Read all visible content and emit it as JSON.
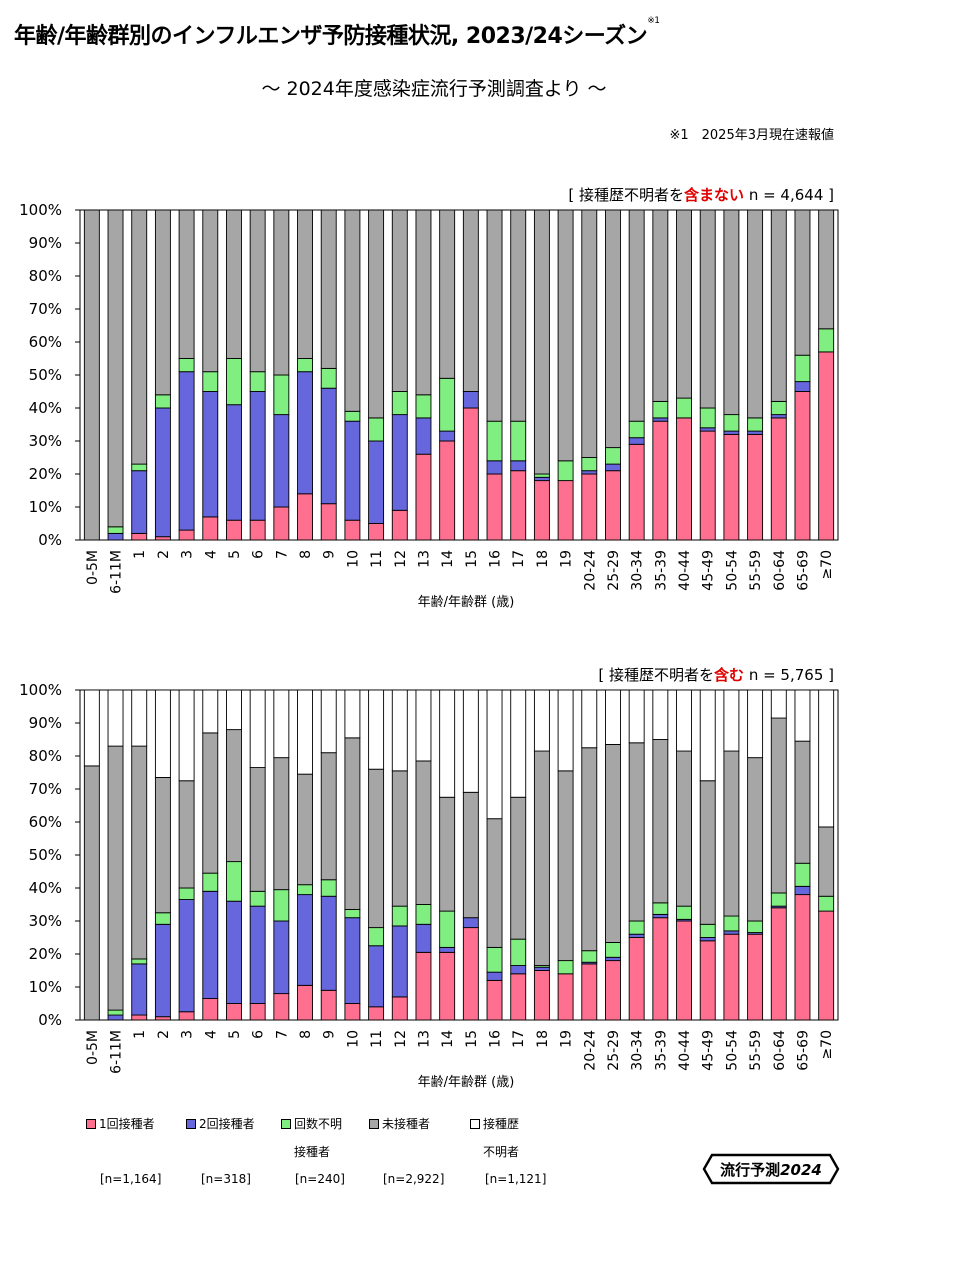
{
  "title": "年齢/年齢群別のインフルエンザ予防接種状況, 2023/24シーズン",
  "title_note_marker": "※1",
  "subtitle": "～ 2024年度感染症流行予測調査より ～",
  "footnote": "※1　2025年3月現在速報値",
  "colors": {
    "dose1": "#ff6f8f",
    "dose2": "#6666dd",
    "unknown_count": "#80ee80",
    "unvaccinated": "#a6a6a6",
    "unknown_history": "#ffffff"
  },
  "legend": {
    "items": [
      {
        "key": "dose1",
        "label": "1回接種者",
        "label2": "",
        "n": "[n=1,164]"
      },
      {
        "key": "dose2",
        "label": "2回接種者",
        "label2": "",
        "n": "[n=318]"
      },
      {
        "key": "unknown_count",
        "label": "回数不明",
        "label2": "接種者",
        "n": "[n=240]"
      },
      {
        "key": "unvaccinated",
        "label": "未接種者",
        "label2": "",
        "n": "[n=2,922]"
      },
      {
        "key": "unknown_history",
        "label": "接種歴",
        "label2": "不明者",
        "n": "[n=1,121]"
      }
    ]
  },
  "badge": {
    "text": "流行予測",
    "year": "2024"
  },
  "chart_data": [
    {
      "type": "bar",
      "stacked": true,
      "caption": {
        "prefix": "[ 接種歴不明者を",
        "emph": "含まない",
        "suffix": " n = 4,644 ]"
      },
      "xlabel": "年齢/年齢群 (歳)",
      "ylabel": "",
      "ylim": [
        0,
        100
      ],
      "yticks": [
        "0%",
        "10%",
        "20%",
        "30%",
        "40%",
        "50%",
        "60%",
        "70%",
        "80%",
        "90%",
        "100%"
      ],
      "categories": [
        "0-5M",
        "6-11M",
        "1",
        "2",
        "3",
        "4",
        "5",
        "6",
        "7",
        "8",
        "9",
        "10",
        "11",
        "12",
        "13",
        "14",
        "15",
        "16",
        "17",
        "18",
        "19",
        "20-24",
        "25-29",
        "30-34",
        "35-39",
        "40-44",
        "45-49",
        "50-54",
        "55-59",
        "60-64",
        "65-69",
        "≥70"
      ],
      "series": [
        {
          "name": "1回接種者",
          "key": "dose1",
          "values": [
            0,
            0,
            2,
            1,
            3,
            7,
            6,
            6,
            10,
            14,
            11,
            6,
            5,
            9,
            26,
            30,
            40,
            20,
            21,
            18,
            18,
            20,
            21,
            29,
            36,
            37,
            33,
            32,
            32,
            37,
            45,
            57
          ]
        },
        {
          "name": "2回接種者",
          "key": "dose2",
          "values": [
            0,
            2,
            19,
            39,
            48,
            38,
            35,
            39,
            28,
            37,
            35,
            30,
            25,
            29,
            11,
            3,
            5,
            4,
            3,
            1,
            0,
            1,
            2,
            2,
            1,
            0,
            1,
            1,
            1,
            1,
            3,
            0
          ]
        },
        {
          "name": "回数不明接種者",
          "key": "unknown_count",
          "values": [
            0,
            2,
            2,
            4,
            4,
            6,
            14,
            6,
            12,
            4,
            6,
            3,
            7,
            7,
            7,
            16,
            0,
            12,
            12,
            1,
            6,
            4,
            5,
            5,
            5,
            6,
            6,
            5,
            4,
            4,
            8,
            7
          ]
        },
        {
          "name": "未接種者",
          "key": "unvaccinated",
          "values": [
            100,
            96,
            77,
            56,
            45,
            49,
            45,
            49,
            50,
            45,
            48,
            61,
            63,
            55,
            56,
            51,
            55,
            64,
            64,
            80,
            76,
            75,
            72,
            64,
            58,
            57,
            60,
            62,
            63,
            58,
            44,
            36
          ]
        },
        {
          "name": "接種歴不明者",
          "key": "unknown_history",
          "values": [
            0,
            0,
            0,
            0,
            0,
            0,
            0,
            0,
            0,
            0,
            0,
            0,
            0,
            0,
            0,
            0,
            0,
            0,
            0,
            0,
            0,
            0,
            0,
            0,
            0,
            0,
            0,
            0,
            0,
            0,
            0,
            0
          ]
        }
      ]
    },
    {
      "type": "bar",
      "stacked": true,
      "caption": {
        "prefix": "[ 接種歴不明者を",
        "emph": "含む",
        "suffix": " n = 5,765 ]"
      },
      "xlabel": "年齢/年齢群 (歳)",
      "ylabel": "",
      "ylim": [
        0,
        100
      ],
      "yticks": [
        "0%",
        "10%",
        "20%",
        "30%",
        "40%",
        "50%",
        "60%",
        "70%",
        "80%",
        "90%",
        "100%"
      ],
      "categories": [
        "0-5M",
        "6-11M",
        "1",
        "2",
        "3",
        "4",
        "5",
        "6",
        "7",
        "8",
        "9",
        "10",
        "11",
        "12",
        "13",
        "14",
        "15",
        "16",
        "17",
        "18",
        "19",
        "20-24",
        "25-29",
        "30-34",
        "35-39",
        "40-44",
        "45-49",
        "50-54",
        "55-59",
        "60-64",
        "65-69",
        "≥70"
      ],
      "series": [
        {
          "name": "1回接種者",
          "key": "dose1",
          "values": [
            0,
            0,
            1.5,
            1,
            2.5,
            6.5,
            5,
            5,
            8,
            10.5,
            9,
            5,
            4,
            7,
            20.5,
            20.5,
            28,
            12,
            14,
            15,
            14,
            17,
            18,
            25,
            31,
            30,
            24,
            26,
            26,
            34,
            38,
            33
          ]
        },
        {
          "name": "2回接種者",
          "key": "dose2",
          "values": [
            0,
            1.5,
            15.5,
            28,
            34,
            32.5,
            31,
            29.5,
            22,
            27.5,
            28.5,
            26,
            18.5,
            21.5,
            8.5,
            1.5,
            3,
            2.5,
            2.5,
            1,
            0,
            0.5,
            1,
            1,
            1,
            0.5,
            1,
            1,
            0.5,
            0.5,
            2.5,
            0
          ]
        },
        {
          "name": "回数不明接種者",
          "key": "unknown_count",
          "values": [
            0,
            1.5,
            1.5,
            3.5,
            3.5,
            5.5,
            12,
            4.5,
            9.5,
            3,
            5,
            2.5,
            5.5,
            6,
            6,
            11,
            0,
            7.5,
            8,
            0.5,
            4,
            3.5,
            4.5,
            4,
            3.5,
            4,
            4,
            4.5,
            3.5,
            4,
            7,
            4.5
          ]
        },
        {
          "name": "未接種者",
          "key": "unvaccinated",
          "values": [
            77,
            80,
            64.5,
            41,
            32.5,
            42.5,
            40,
            37.5,
            40,
            33.5,
            38.5,
            52,
            48,
            41,
            43.5,
            34.5,
            38,
            39,
            43,
            65,
            57.5,
            61.5,
            60,
            54,
            49.5,
            47,
            43.5,
            50,
            49.5,
            53,
            37,
            21
          ]
        },
        {
          "name": "接種歴不明者",
          "key": "unknown_history",
          "values": [
            23,
            17,
            17,
            26.5,
            27.5,
            13,
            12,
            23.5,
            20.5,
            25.5,
            19,
            14.5,
            24,
            24.5,
            21.5,
            32.5,
            31,
            39,
            32.5,
            18.5,
            24.5,
            17.5,
            16.5,
            16,
            15,
            18.5,
            27.5,
            18.5,
            20.5,
            8.5,
            15.5,
            41.5
          ]
        }
      ]
    }
  ]
}
